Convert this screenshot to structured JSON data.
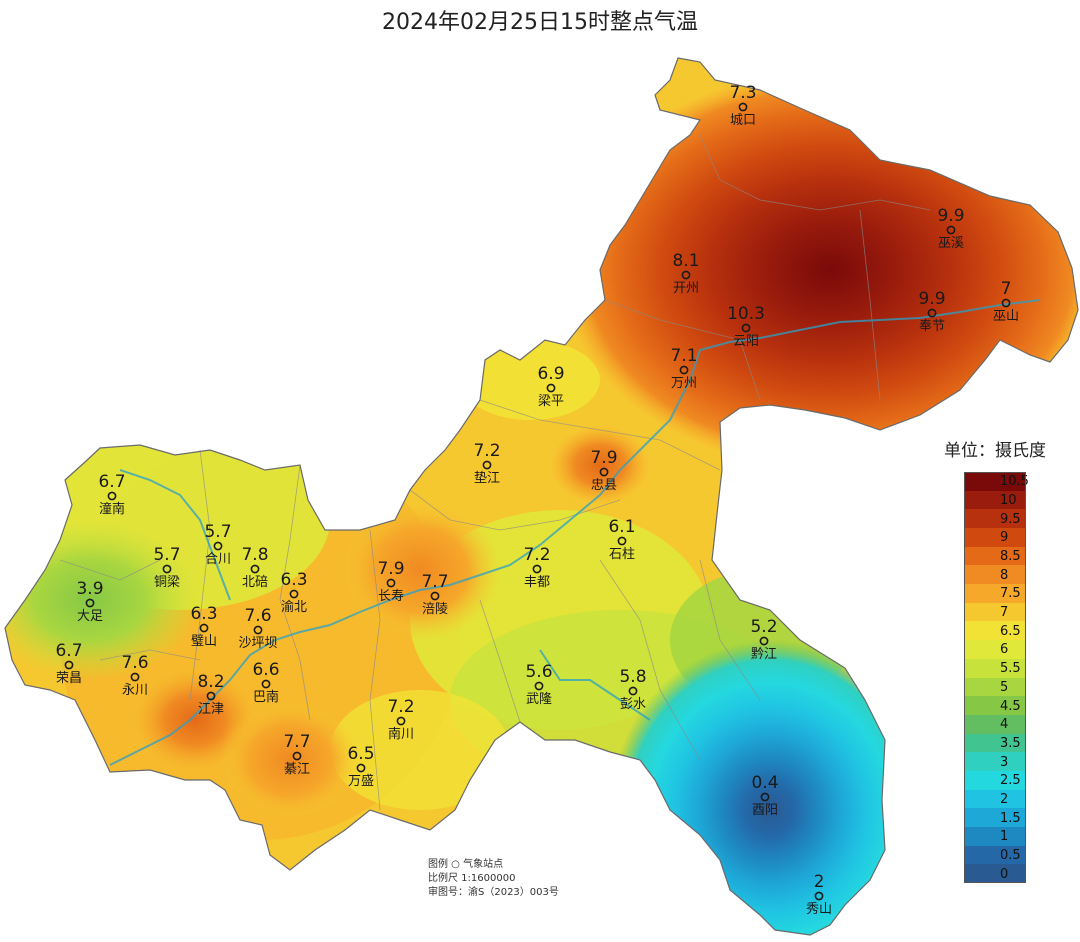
{
  "title": "2024年02月25日15时整点气温",
  "unit_label": "单位：摄氏度",
  "legend": {
    "levels": [
      {
        "label": "10.5",
        "color": "#7a0a0a"
      },
      {
        "label": "10",
        "color": "#9a1c0c"
      },
      {
        "label": "9.5",
        "color": "#b8310e"
      },
      {
        "label": "9",
        "color": "#d04a10"
      },
      {
        "label": "8.5",
        "color": "#e46a18"
      },
      {
        "label": "8",
        "color": "#f08a22"
      },
      {
        "label": "7.5",
        "color": "#f6a82a"
      },
      {
        "label": "7",
        "color": "#f6c830"
      },
      {
        "label": "6.5",
        "color": "#f2e236"
      },
      {
        "label": "6",
        "color": "#e0e83a"
      },
      {
        "label": "5.5",
        "color": "#c8e23c"
      },
      {
        "label": "5",
        "color": "#a8d640"
      },
      {
        "label": "4.5",
        "color": "#86c846"
      },
      {
        "label": "4",
        "color": "#62be60"
      },
      {
        "label": "3.5",
        "color": "#42c490"
      },
      {
        "label": "3",
        "color": "#30d0c0"
      },
      {
        "label": "2.5",
        "color": "#24d8e0"
      },
      {
        "label": "2",
        "color": "#20c4e2"
      },
      {
        "label": "1.5",
        "color": "#1ea8d8"
      },
      {
        "label": "1",
        "color": "#1e88c0"
      },
      {
        "label": "0.5",
        "color": "#2468a8"
      },
      {
        "label": "0",
        "color": "#2a5a92"
      }
    ]
  },
  "stations": [
    {
      "name": "城口",
      "value": "7.3"
    },
    {
      "name": "巫溪",
      "value": "9.9"
    },
    {
      "name": "开州",
      "value": "8.1"
    },
    {
      "name": "云阳",
      "value": "10.3"
    },
    {
      "name": "奉节",
      "value": "9.9"
    },
    {
      "name": "巫山",
      "value": "7"
    },
    {
      "name": "梁平",
      "value": "6.9"
    },
    {
      "name": "万州",
      "value": "7.1"
    },
    {
      "name": "垫江",
      "value": "7.2"
    },
    {
      "name": "忠县",
      "value": "7.9"
    },
    {
      "name": "潼南",
      "value": "6.7"
    },
    {
      "name": "合川",
      "value": "5.7"
    },
    {
      "name": "铜梁",
      "value": "5.7"
    },
    {
      "name": "北碚",
      "value": "7.8"
    },
    {
      "name": "渝北",
      "value": "6.3"
    },
    {
      "name": "长寿",
      "value": "7.9"
    },
    {
      "name": "涪陵",
      "value": "7.7"
    },
    {
      "name": "丰都",
      "value": "7.2"
    },
    {
      "name": "石柱",
      "value": "6.1"
    },
    {
      "name": "大足",
      "value": "3.9"
    },
    {
      "name": "璧山",
      "value": "6.3"
    },
    {
      "name": "沙坪坝",
      "value": "7.6"
    },
    {
      "name": "荣昌",
      "value": "6.7"
    },
    {
      "name": "永川",
      "value": "7.6"
    },
    {
      "name": "巴南",
      "value": "6.6"
    },
    {
      "name": "江津",
      "value": "8.2"
    },
    {
      "name": "武隆",
      "value": "5.6"
    },
    {
      "name": "彭水",
      "value": "5.8"
    },
    {
      "name": "黔江",
      "value": "5.2"
    },
    {
      "name": "南川",
      "value": "7.2"
    },
    {
      "name": "綦江",
      "value": "7.7"
    },
    {
      "name": "万盛",
      "value": "6.5"
    },
    {
      "name": "酉阳",
      "value": "0.4"
    },
    {
      "name": "秀山",
      "value": "2"
    }
  ],
  "info": {
    "legend_line": "图例  ○  气象站点",
    "scale_line": "比例尺   1:1600000",
    "approval_line": "审图号：渝S（2023）003号"
  }
}
